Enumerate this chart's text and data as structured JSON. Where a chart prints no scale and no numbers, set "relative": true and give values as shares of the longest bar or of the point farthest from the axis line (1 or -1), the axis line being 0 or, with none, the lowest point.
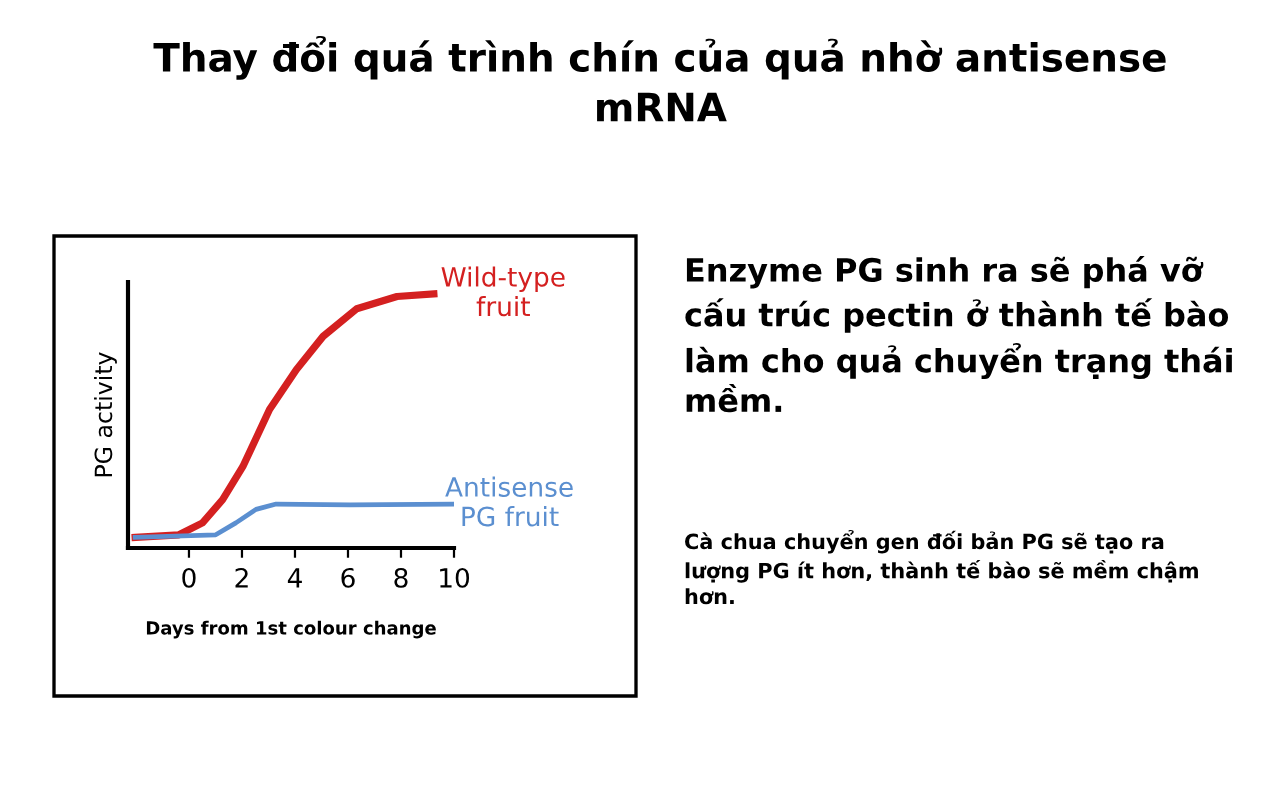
{
  "chart_data": {
    "type": "line",
    "title": "Thay đổi quá trình chín của quả nhờ antisense mRNA",
    "xlabel": "Days from 1st colour change",
    "ylabel": "PG activity",
    "relative": true,
    "xlim": [
      -2.3,
      10
    ],
    "xticks": [
      0,
      2,
      4,
      6,
      8,
      10
    ],
    "tick_labels": "x",
    "grid": false,
    "legend": false,
    "series": [
      {
        "name": "Wild-type fruit",
        "color": "#d42020",
        "x": [
          -2.03,
          -0.38,
          0.51,
          1.27,
          2.03,
          3.04,
          4.05,
          5.06,
          6.33,
          7.85,
          9.24
        ],
        "values": [
          0.042,
          0.052,
          0.099,
          0.19,
          0.32,
          0.545,
          0.702,
          0.833,
          0.942,
          0.99,
          1.0
        ]
      },
      {
        "name": "Antisense PG fruit",
        "color": "#5b8fd0",
        "x": [
          -2.03,
          1.01,
          1.77,
          2.53,
          3.29,
          6.08,
          10
        ],
        "values": [
          0.042,
          0.052,
          0.099,
          0.152,
          0.173,
          0.17,
          0.173
        ]
      }
    ],
    "annotations": [
      "Enzyme PG sinh ra sẽ phá vỡ cấu trúc pectin ở thành tế bào làm cho quả chuyển trạng thái mềm.",
      "Cà chua chuyển gen đối bản PG sẽ tạo ra lượng PG ít hơn, thành tế bào sẽ mềm chậm hơn."
    ]
  }
}
